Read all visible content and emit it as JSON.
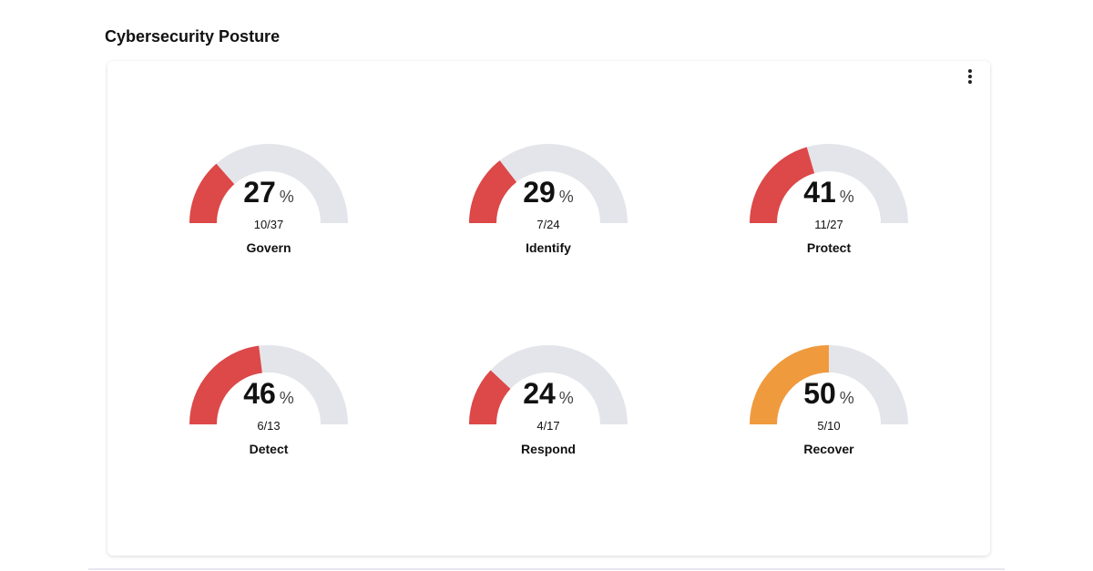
{
  "title": "Cybersecurity Posture",
  "menu_icon": "more-vertical-icon",
  "colors": {
    "track": "#e4e5ea",
    "low": "#dd4848",
    "medium": "#f09a3e"
  },
  "gauges": [
    {
      "name": "Govern",
      "percent": 27,
      "unit": "%",
      "fraction": "10/37",
      "color": "#dd4848"
    },
    {
      "name": "Identify",
      "percent": 29,
      "unit": "%",
      "fraction": "7/24",
      "color": "#dd4848"
    },
    {
      "name": "Protect",
      "percent": 41,
      "unit": "%",
      "fraction": "11/27",
      "color": "#dd4848"
    },
    {
      "name": "Detect",
      "percent": 46,
      "unit": "%",
      "fraction": "6/13",
      "color": "#dd4848"
    },
    {
      "name": "Respond",
      "percent": 24,
      "unit": "%",
      "fraction": "4/17",
      "color": "#dd4848"
    },
    {
      "name": "Recover",
      "percent": 50,
      "unit": "%",
      "fraction": "5/10",
      "color": "#f09a3e"
    }
  ]
}
